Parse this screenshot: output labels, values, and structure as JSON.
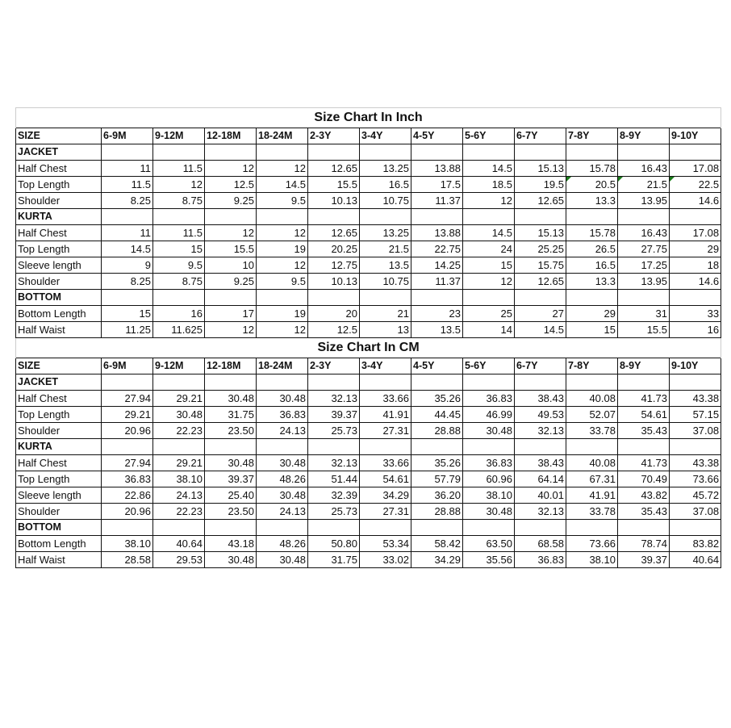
{
  "tables": [
    {
      "title": "Size Chart In Inch",
      "headers": [
        "SIZE",
        "6-9M",
        "9-12M",
        "12-18M",
        "18-24M",
        "2-3Y",
        "3-4Y",
        "4-5Y",
        "5-6Y",
        "6-7Y",
        "7-8Y",
        "8-9Y",
        "9-10Y"
      ],
      "sections": [
        {
          "name": "JACKET",
          "rows": [
            {
              "label": "Half Chest",
              "values": [
                "11",
                "11.5",
                "12",
                "12",
                "12.65",
                "13.25",
                "13.88",
                "14.5",
                "15.13",
                "15.78",
                "16.43",
                "17.08"
              ]
            },
            {
              "label": "Top Length",
              "values": [
                "11.5",
                "12",
                "12.5",
                "14.5",
                "15.5",
                "16.5",
                "17.5",
                "18.5",
                "19.5",
                "20.5",
                "21.5",
                "22.5"
              ],
              "marked_columns": [
                10,
                11,
                12
              ]
            },
            {
              "label": "Shoulder",
              "values": [
                "8.25",
                "8.75",
                "9.25",
                "9.5",
                "10.13",
                "10.75",
                "11.37",
                "12",
                "12.65",
                "13.3",
                "13.95",
                "14.6"
              ]
            }
          ]
        },
        {
          "name": "KURTA",
          "rows": [
            {
              "label": "Half Chest",
              "values": [
                "11",
                "11.5",
                "12",
                "12",
                "12.65",
                "13.25",
                "13.88",
                "14.5",
                "15.13",
                "15.78",
                "16.43",
                "17.08"
              ]
            },
            {
              "label": "Top Length",
              "values": [
                "14.5",
                "15",
                "15.5",
                "19",
                "20.25",
                "21.5",
                "22.75",
                "24",
                "25.25",
                "26.5",
                "27.75",
                "29"
              ]
            },
            {
              "label": "Sleeve length",
              "values": [
                "9",
                "9.5",
                "10",
                "12",
                "12.75",
                "13.5",
                "14.25",
                "15",
                "15.75",
                "16.5",
                "17.25",
                "18"
              ]
            },
            {
              "label": "Shoulder",
              "values": [
                "8.25",
                "8.75",
                "9.25",
                "9.5",
                "10.13",
                "10.75",
                "11.37",
                "12",
                "12.65",
                "13.3",
                "13.95",
                "14.6"
              ]
            }
          ]
        },
        {
          "name": "BOTTOM",
          "rows": [
            {
              "label": "Bottom Length",
              "values": [
                "15",
                "16",
                "17",
                "19",
                "20",
                "21",
                "23",
                "25",
                "27",
                "29",
                "31",
                "33"
              ]
            },
            {
              "label": "Half Waist",
              "values": [
                "11.25",
                "11.625",
                "12",
                "12",
                "12.5",
                "13",
                "13.5",
                "14",
                "14.5",
                "15",
                "15.5",
                "16"
              ]
            }
          ]
        }
      ]
    },
    {
      "title": "Size Chart In CM",
      "headers": [
        "SIZE",
        "6-9M",
        "9-12M",
        "12-18M",
        "18-24M",
        "2-3Y",
        "3-4Y",
        "4-5Y",
        "5-6Y",
        "6-7Y",
        "7-8Y",
        "8-9Y",
        "9-10Y"
      ],
      "sections": [
        {
          "name": "JACKET",
          "rows": [
            {
              "label": "Half Chest",
              "values": [
                "27.94",
                "29.21",
                "30.48",
                "30.48",
                "32.13",
                "33.66",
                "35.26",
                "36.83",
                "38.43",
                "40.08",
                "41.73",
                "43.38"
              ]
            },
            {
              "label": "Top Length",
              "values": [
                "29.21",
                "30.48",
                "31.75",
                "36.83",
                "39.37",
                "41.91",
                "44.45",
                "46.99",
                "49.53",
                "52.07",
                "54.61",
                "57.15"
              ]
            },
            {
              "label": "Shoulder",
              "values": [
                "20.96",
                "22.23",
                "23.50",
                "24.13",
                "25.73",
                "27.31",
                "28.88",
                "30.48",
                "32.13",
                "33.78",
                "35.43",
                "37.08"
              ]
            }
          ]
        },
        {
          "name": "KURTA",
          "rows": [
            {
              "label": "Half Chest",
              "values": [
                "27.94",
                "29.21",
                "30.48",
                "30.48",
                "32.13",
                "33.66",
                "35.26",
                "36.83",
                "38.43",
                "40.08",
                "41.73",
                "43.38"
              ]
            },
            {
              "label": "Top Length",
              "values": [
                "36.83",
                "38.10",
                "39.37",
                "48.26",
                "51.44",
                "54.61",
                "57.79",
                "60.96",
                "64.14",
                "67.31",
                "70.49",
                "73.66"
              ]
            },
            {
              "label": "Sleeve length",
              "values": [
                "22.86",
                "24.13",
                "25.40",
                "30.48",
                "32.39",
                "34.29",
                "36.20",
                "38.10",
                "40.01",
                "41.91",
                "43.82",
                "45.72"
              ]
            },
            {
              "label": "Shoulder",
              "values": [
                "20.96",
                "22.23",
                "23.50",
                "24.13",
                "25.73",
                "27.31",
                "28.88",
                "30.48",
                "32.13",
                "33.78",
                "35.43",
                "37.08"
              ]
            }
          ]
        },
        {
          "name": "BOTTOM",
          "rows": [
            {
              "label": "Bottom Length",
              "values": [
                "38.10",
                "40.64",
                "43.18",
                "48.26",
                "50.80",
                "53.34",
                "58.42",
                "63.50",
                "68.58",
                "73.66",
                "78.74",
                "83.82"
              ]
            },
            {
              "label": "Half Waist",
              "values": [
                "28.58",
                "29.53",
                "30.48",
                "30.48",
                "31.75",
                "33.02",
                "34.29",
                "35.56",
                "36.83",
                "38.10",
                "39.37",
                "40.64"
              ]
            }
          ]
        }
      ]
    }
  ]
}
